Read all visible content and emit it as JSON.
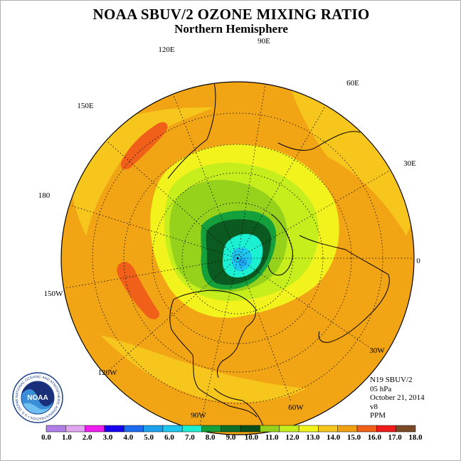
{
  "title": "NOAA SBUV/2 OZONE MIXING RATIO",
  "subtitle": "Northern Hemisphere",
  "longitude_labels": [
    "90E",
    "60E",
    "30E",
    "0",
    "30W",
    "60W",
    "90W",
    "120W",
    "150W",
    "180",
    "150E",
    "120E"
  ],
  "info": {
    "satellite": "N19 SBUV/2",
    "level": "05 hPa",
    "date": "October 21, 2014",
    "version": "v8",
    "units": "PPM"
  },
  "logo": {
    "text": "NOAA",
    "ring_text": "NATIONAL OCEANIC AND ATMOSPHERIC ADMINISTRATION • U.S. DEPARTMENT OF COMMERCE"
  },
  "colorbar": {
    "labels": [
      "0.0",
      "1.0",
      "2.0",
      "3.0",
      "4.0",
      "5.0",
      "6.0",
      "7.0",
      "8.0",
      "9.0",
      "10.0",
      "11.0",
      "12.0",
      "13.0",
      "14.0",
      "15.0",
      "16.0",
      "17.0",
      "18.0"
    ],
    "colors": [
      "#b07ee6",
      "#e2a6f0",
      "#ee1cee",
      "#1800f0",
      "#1c6cf0",
      "#1ca2ec",
      "#1cc6ee",
      "#1cf0d2",
      "#14a03a",
      "#0c7028",
      "#0a4f1c",
      "#96d21c",
      "#c6ee1c",
      "#f2f21c",
      "#f6c61c",
      "#f0a010",
      "#f06018",
      "#f01c1c",
      "#7a4a26"
    ]
  },
  "map_colors": {
    "ocean_background": "#f2a514",
    "band_13_14": "#f6c61c",
    "band_15_16": "#f06018",
    "band_12_13": "#f2f21c",
    "band_11_12": "#c6ee1c",
    "band_10_11": "#96d21c",
    "band_9_10": "#14a03a",
    "band_8_9": "#0a5a22",
    "band_7_8": "#1cf0d2",
    "band_6_7": "#1cc6ee",
    "band_5_6": "#1ca2ec"
  }
}
